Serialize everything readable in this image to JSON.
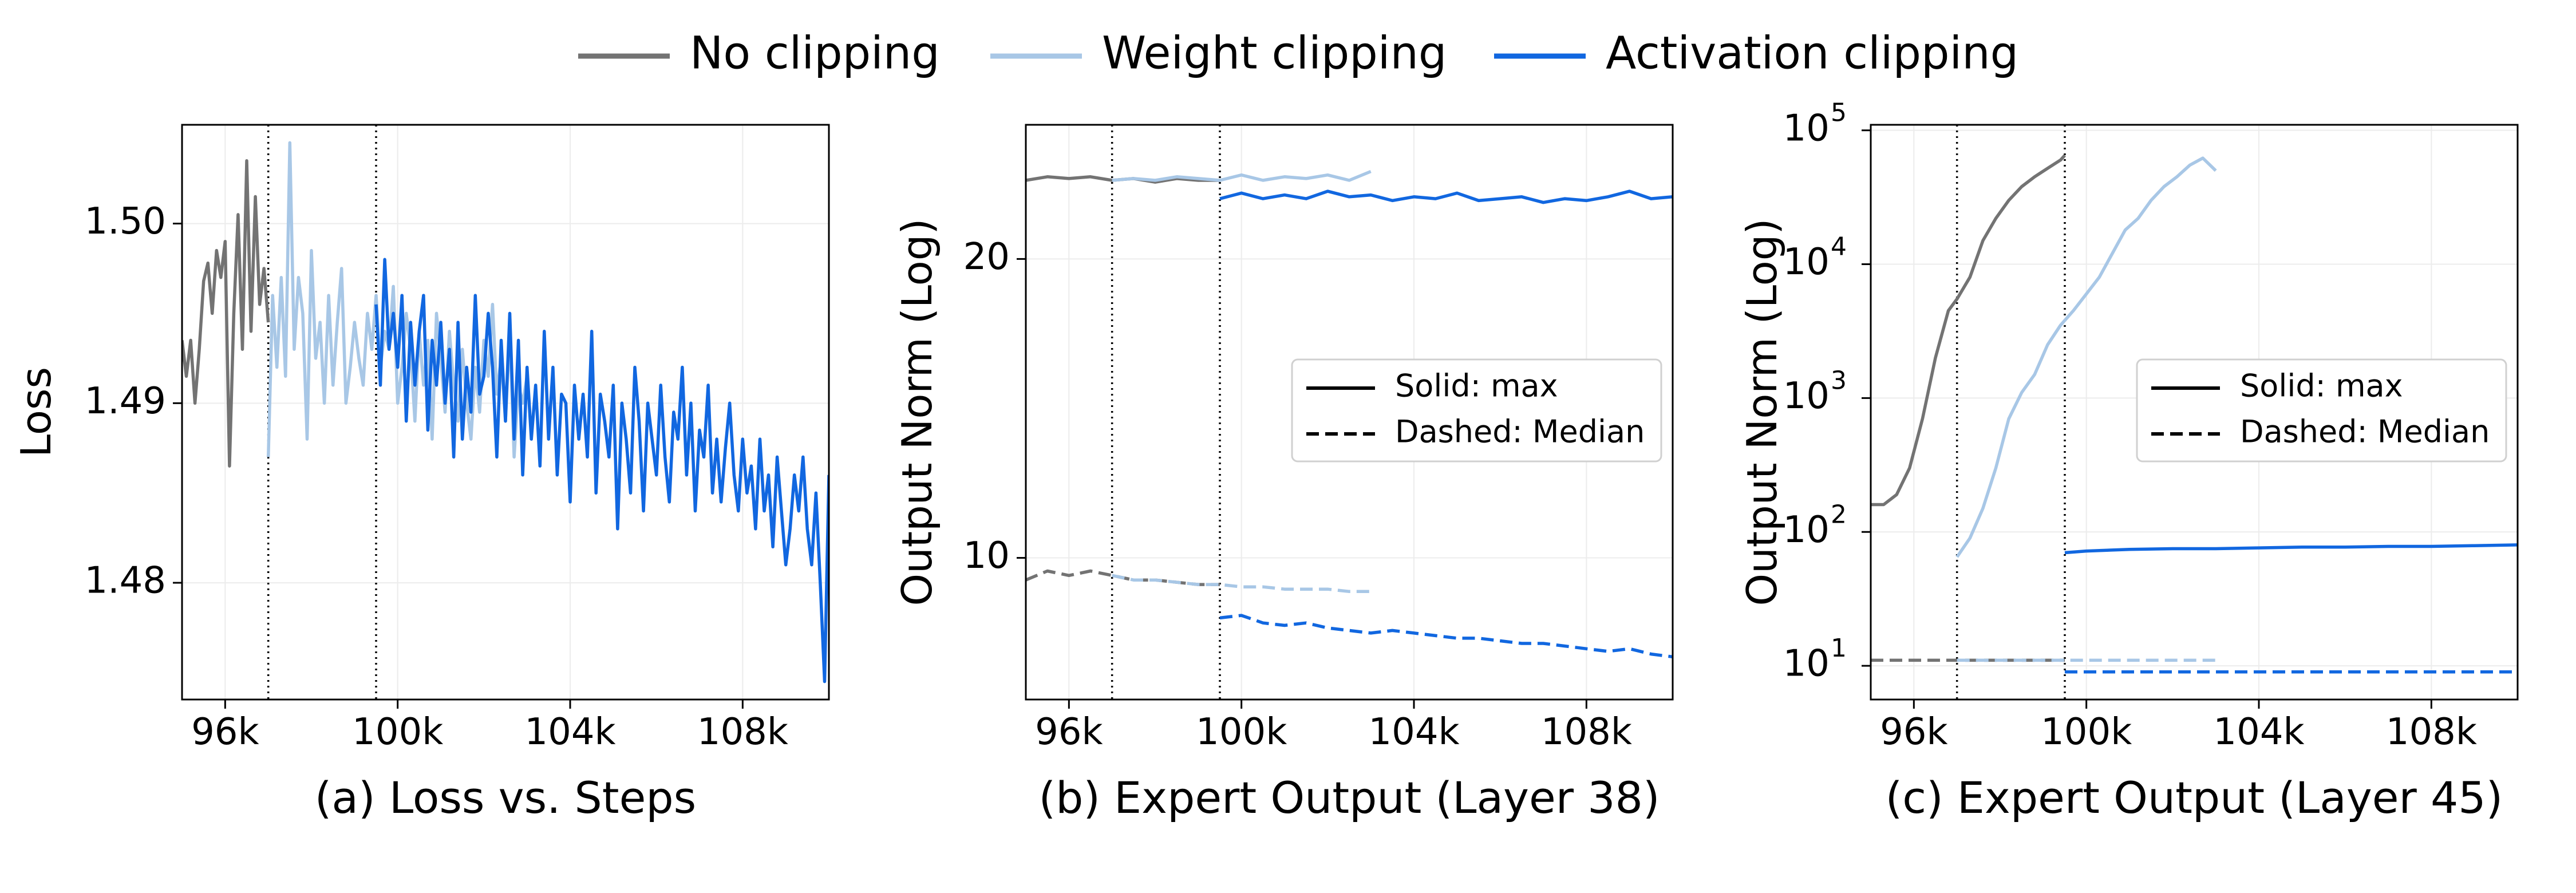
{
  "figure_legend": [
    {
      "label": "No clipping",
      "color": "#737373"
    },
    {
      "label": "Weight clipping",
      "color": "#a8c7e6"
    },
    {
      "label": "Activation clipping",
      "color": "#1167e0"
    }
  ],
  "style_legend": [
    {
      "label": "Solid: max",
      "style": "solid"
    },
    {
      "label": "Dashed: Median",
      "style": "dashed"
    }
  ],
  "colors": {
    "no_clip": "#737373",
    "weight_clip": "#a8c7e6",
    "act_clip": "#1167e0"
  },
  "chart_data": [
    {
      "id": "a",
      "type": "line",
      "caption": "(a) Loss vs. Steps",
      "ylabel": "Loss",
      "xlabel": "",
      "yscale": "linear",
      "xlim": [
        95000,
        110000
      ],
      "ylim": [
        1.4735,
        1.5055
      ],
      "xticks": [
        {
          "v": 96000,
          "label": "96k"
        },
        {
          "v": 100000,
          "label": "100k"
        },
        {
          "v": 104000,
          "label": "104k"
        },
        {
          "v": 108000,
          "label": "108k"
        }
      ],
      "yticks": [
        {
          "v": 1.48,
          "label": "1.48"
        },
        {
          "v": 1.49,
          "label": "1.49"
        },
        {
          "v": 1.5,
          "label": "1.50"
        }
      ],
      "vlines": [
        97000,
        99500
      ],
      "show_style_legend": false,
      "series": [
        {
          "name": "No clipping",
          "color": "no_clip",
          "dash": false,
          "x": [
            95000,
            95100,
            95200,
            95300,
            95400,
            95500,
            95600,
            95700,
            95800,
            95900,
            96000,
            96100,
            96200,
            96300,
            96400,
            96500,
            96600,
            96700,
            96800,
            96900,
            97000
          ],
          "y": [
            1.4935,
            1.4915,
            1.4935,
            1.49,
            1.493,
            1.4968,
            1.4978,
            1.495,
            1.4985,
            1.497,
            1.499,
            1.4865,
            1.495,
            1.5005,
            1.493,
            1.5035,
            1.494,
            1.5015,
            1.4955,
            1.4975,
            1.4945
          ]
        },
        {
          "name": "Weight clipping",
          "color": "weight_clip",
          "dash": false,
          "x": [
            97000,
            97100,
            97200,
            97300,
            97400,
            97500,
            97600,
            97700,
            97800,
            97900,
            98000,
            98100,
            98200,
            98300,
            98400,
            98500,
            98600,
            98700,
            98800,
            98900,
            99000,
            99100,
            99200,
            99300,
            99400,
            99500,
            99600,
            99700,
            99800,
            99900,
            100000,
            100100,
            100200,
            100300,
            100400,
            100500,
            100600,
            100700,
            100800,
            100900,
            101000,
            101100,
            101200,
            101300,
            101400,
            101500,
            101600,
            101700,
            101800,
            101900,
            102000,
            102100,
            102200,
            102300,
            102400,
            102500,
            102600,
            102700,
            102800,
            102900,
            103000
          ],
          "y": [
            1.487,
            1.496,
            1.492,
            1.497,
            1.4915,
            1.5045,
            1.493,
            1.497,
            1.495,
            1.488,
            1.4985,
            1.4925,
            1.4945,
            1.49,
            1.496,
            1.491,
            1.4945,
            1.4975,
            1.49,
            1.492,
            1.4945,
            1.4925,
            1.491,
            1.495,
            1.493,
            1.496,
            1.492,
            1.494,
            1.493,
            1.4965,
            1.49,
            1.492,
            1.495,
            1.493,
            1.489,
            1.494,
            1.491,
            1.4935,
            1.488,
            1.495,
            1.4925,
            1.4895,
            1.494,
            1.491,
            1.489,
            1.493,
            1.49,
            1.488,
            1.492,
            1.4895,
            1.4935,
            1.4915,
            1.4955,
            1.4905,
            1.4925,
            1.489,
            1.494,
            1.487,
            1.491,
            1.49,
            1.4915
          ]
        },
        {
          "name": "Activation clipping",
          "color": "act_clip",
          "dash": false,
          "x": [
            99500,
            99600,
            99700,
            99800,
            99900,
            100000,
            100100,
            100200,
            100300,
            100400,
            100500,
            100600,
            100700,
            100800,
            100900,
            101000,
            101100,
            101200,
            101300,
            101400,
            101500,
            101600,
            101700,
            101800,
            101900,
            102000,
            102100,
            102200,
            102300,
            102400,
            102500,
            102600,
            102700,
            102800,
            102900,
            103000,
            103100,
            103200,
            103300,
            103400,
            103500,
            103600,
            103700,
            103800,
            103900,
            104000,
            104100,
            104200,
            104300,
            104400,
            104500,
            104600,
            104700,
            104800,
            104900,
            105000,
            105100,
            105200,
            105300,
            105400,
            105500,
            105600,
            105700,
            105800,
            105900,
            106000,
            106100,
            106200,
            106300,
            106400,
            106500,
            106600,
            106700,
            106800,
            106900,
            107000,
            107100,
            107200,
            107300,
            107400,
            107500,
            107600,
            107700,
            107800,
            107900,
            108000,
            108100,
            108200,
            108300,
            108400,
            108500,
            108600,
            108700,
            108800,
            108900,
            109000,
            109100,
            109200,
            109300,
            109400,
            109500,
            109600,
            109700,
            109800,
            109900,
            110000
          ],
          "y": [
            1.4955,
            1.491,
            1.498,
            1.493,
            1.495,
            1.492,
            1.496,
            1.489,
            1.4945,
            1.491,
            1.494,
            1.496,
            1.4885,
            1.4935,
            1.491,
            1.4945,
            1.49,
            1.493,
            1.487,
            1.4945,
            1.488,
            1.492,
            1.4895,
            1.496,
            1.4905,
            1.4915,
            1.495,
            1.492,
            1.487,
            1.4935,
            1.489,
            1.495,
            1.488,
            1.4935,
            1.486,
            1.492,
            1.488,
            1.491,
            1.4865,
            1.494,
            1.488,
            1.492,
            1.486,
            1.4905,
            1.49,
            1.4845,
            1.491,
            1.488,
            1.4905,
            1.487,
            1.494,
            1.485,
            1.4905,
            1.489,
            1.487,
            1.491,
            1.483,
            1.49,
            1.488,
            1.485,
            1.492,
            1.489,
            1.484,
            1.49,
            1.488,
            1.486,
            1.491,
            1.487,
            1.4845,
            1.4895,
            1.488,
            1.492,
            1.486,
            1.49,
            1.484,
            1.4885,
            1.487,
            1.491,
            1.485,
            1.488,
            1.4845,
            1.4875,
            1.49,
            1.486,
            1.484,
            1.488,
            1.485,
            1.4865,
            1.483,
            1.488,
            1.484,
            1.486,
            1.482,
            1.487,
            1.484,
            1.481,
            1.483,
            1.486,
            1.484,
            1.487,
            1.483,
            1.481,
            1.485,
            1.48,
            1.4745,
            1.486
          ]
        }
      ]
    },
    {
      "id": "b",
      "type": "line",
      "caption": "(b) Expert Output (Layer 38)",
      "ylabel": "Output Norm (Log)",
      "xlabel": "",
      "yscale": "log",
      "xlim": [
        95000,
        110000
      ],
      "ylim": [
        7.2,
        27.3
      ],
      "xticks": [
        {
          "v": 96000,
          "label": "96k"
        },
        {
          "v": 100000,
          "label": "100k"
        },
        {
          "v": 104000,
          "label": "104k"
        },
        {
          "v": 108000,
          "label": "108k"
        }
      ],
      "yticks": [
        {
          "v": 10,
          "label": "10"
        },
        {
          "v": 20,
          "label": "20"
        }
      ],
      "vlines": [
        97000,
        99500
      ],
      "show_style_legend": true,
      "series": [
        {
          "name": "No clipping (max)",
          "color": "no_clip",
          "dash": false,
          "x": [
            95000,
            95500,
            96000,
            96500,
            97000,
            97500,
            98000,
            98500,
            99000,
            99500
          ],
          "y": [
            24.0,
            24.2,
            24.1,
            24.2,
            24.0,
            24.1,
            23.9,
            24.1,
            24.0,
            24.0
          ]
        },
        {
          "name": "No clipping (median)",
          "color": "no_clip",
          "dash": true,
          "x": [
            95000,
            95500,
            96000,
            96500,
            97000,
            97500,
            98000,
            98500,
            99000,
            99500
          ],
          "y": [
            9.5,
            9.7,
            9.6,
            9.7,
            9.6,
            9.5,
            9.5,
            9.45,
            9.4,
            9.4
          ]
        },
        {
          "name": "Weight clipping (max)",
          "color": "weight_clip",
          "dash": false,
          "x": [
            97000,
            97500,
            98000,
            98500,
            99000,
            99500,
            100000,
            100500,
            101000,
            101500,
            102000,
            102500,
            103000
          ],
          "y": [
            24.0,
            24.1,
            24.0,
            24.2,
            24.1,
            24.0,
            24.3,
            24.0,
            24.2,
            24.1,
            24.3,
            24.0,
            24.5
          ]
        },
        {
          "name": "Weight clipping (median)",
          "color": "weight_clip",
          "dash": true,
          "x": [
            97000,
            97500,
            98000,
            98500,
            99000,
            99500,
            100000,
            100500,
            101000,
            101500,
            102000,
            102500,
            103000
          ],
          "y": [
            9.6,
            9.5,
            9.5,
            9.45,
            9.4,
            9.4,
            9.35,
            9.35,
            9.3,
            9.3,
            9.3,
            9.25,
            9.25
          ]
        },
        {
          "name": "Activation clipping (max)",
          "color": "act_clip",
          "dash": false,
          "x": [
            99500,
            100000,
            100500,
            101000,
            101500,
            102000,
            102500,
            103000,
            103500,
            104000,
            104500,
            105000,
            105500,
            106000,
            106500,
            107000,
            107500,
            108000,
            108500,
            109000,
            109500,
            110000
          ],
          "y": [
            23.0,
            23.3,
            23.0,
            23.2,
            23.0,
            23.4,
            23.1,
            23.2,
            22.9,
            23.1,
            23.0,
            23.3,
            22.9,
            23.0,
            23.1,
            22.8,
            23.0,
            22.9,
            23.1,
            23.4,
            23.0,
            23.1
          ]
        },
        {
          "name": "Activation clipping (median)",
          "color": "act_clip",
          "dash": true,
          "x": [
            99500,
            100000,
            100500,
            101000,
            101500,
            102000,
            102500,
            103000,
            103500,
            104000,
            104500,
            105000,
            105500,
            106000,
            106500,
            107000,
            107500,
            108000,
            108500,
            109000,
            109500,
            110000
          ],
          "y": [
            8.7,
            8.75,
            8.6,
            8.55,
            8.6,
            8.5,
            8.45,
            8.4,
            8.45,
            8.4,
            8.35,
            8.3,
            8.3,
            8.25,
            8.2,
            8.2,
            8.15,
            8.1,
            8.05,
            8.1,
            8.0,
            7.95
          ]
        }
      ]
    },
    {
      "id": "c",
      "type": "line",
      "caption": "(c) Expert Output (Layer 45)",
      "ylabel": "Output Norm (Log)",
      "xlabel": "",
      "yscale": "log",
      "xlim": [
        95000,
        110000
      ],
      "ylim": [
        5.6,
        110000
      ],
      "xticks": [
        {
          "v": 96000,
          "label": "96k"
        },
        {
          "v": 100000,
          "label": "100k"
        },
        {
          "v": 104000,
          "label": "104k"
        },
        {
          "v": 108000,
          "label": "108k"
        }
      ],
      "yticks": [
        {
          "v": 10,
          "label": "10",
          "exp": "1"
        },
        {
          "v": 100,
          "label": "10",
          "exp": "2"
        },
        {
          "v": 1000,
          "label": "10",
          "exp": "3"
        },
        {
          "v": 10000,
          "label": "10",
          "exp": "4"
        },
        {
          "v": 100000,
          "label": "10",
          "exp": "5"
        }
      ],
      "vlines": [
        97000,
        99500
      ],
      "show_style_legend": true,
      "series": [
        {
          "name": "No clipping (max)",
          "color": "no_clip",
          "dash": false,
          "x": [
            95000,
            95300,
            95600,
            95900,
            96200,
            96500,
            96800,
            97000,
            97300,
            97600,
            97900,
            98200,
            98500,
            98800,
            99100,
            99400,
            99500
          ],
          "y": [
            160,
            160,
            190,
            300,
            700,
            2000,
            4500,
            5500,
            8000,
            15000,
            22000,
            30000,
            38000,
            45000,
            52000,
            60000,
            65000
          ]
        },
        {
          "name": "No clipping (median)",
          "color": "no_clip",
          "dash": true,
          "x": [
            95000,
            96000,
            97000,
            98000,
            99000,
            99500
          ],
          "y": [
            11,
            11,
            11,
            11,
            11,
            11
          ]
        },
        {
          "name": "Weight clipping (max)",
          "color": "weight_clip",
          "dash": false,
          "x": [
            97000,
            97300,
            97600,
            97900,
            98200,
            98500,
            98800,
            99100,
            99400,
            99700,
            100000,
            100300,
            100600,
            100900,
            101200,
            101500,
            101800,
            102100,
            102400,
            102700,
            103000
          ],
          "y": [
            65,
            90,
            150,
            300,
            700,
            1100,
            1500,
            2500,
            3500,
            4500,
            6000,
            8000,
            12000,
            18000,
            22000,
            30000,
            38000,
            45000,
            55000,
            62000,
            50000
          ]
        },
        {
          "name": "Weight clipping (median)",
          "color": "weight_clip",
          "dash": true,
          "x": [
            97000,
            98000,
            99000,
            100000,
            101000,
            102000,
            103000
          ],
          "y": [
            11,
            11,
            11,
            11,
            11,
            11,
            11
          ]
        },
        {
          "name": "Activation clipping (max)",
          "color": "act_clip",
          "dash": false,
          "x": [
            99500,
            100000,
            101000,
            102000,
            103000,
            104000,
            105000,
            106000,
            107000,
            108000,
            109000,
            110000
          ],
          "y": [
            70,
            72,
            74,
            75,
            75,
            76,
            77,
            77,
            78,
            78,
            79,
            80
          ]
        },
        {
          "name": "Activation clipping (median)",
          "color": "act_clip",
          "dash": true,
          "x": [
            99500,
            100000,
            102000,
            104000,
            106000,
            108000,
            110000
          ],
          "y": [
            9,
            9,
            9,
            9,
            9,
            9,
            9
          ]
        }
      ]
    }
  ]
}
